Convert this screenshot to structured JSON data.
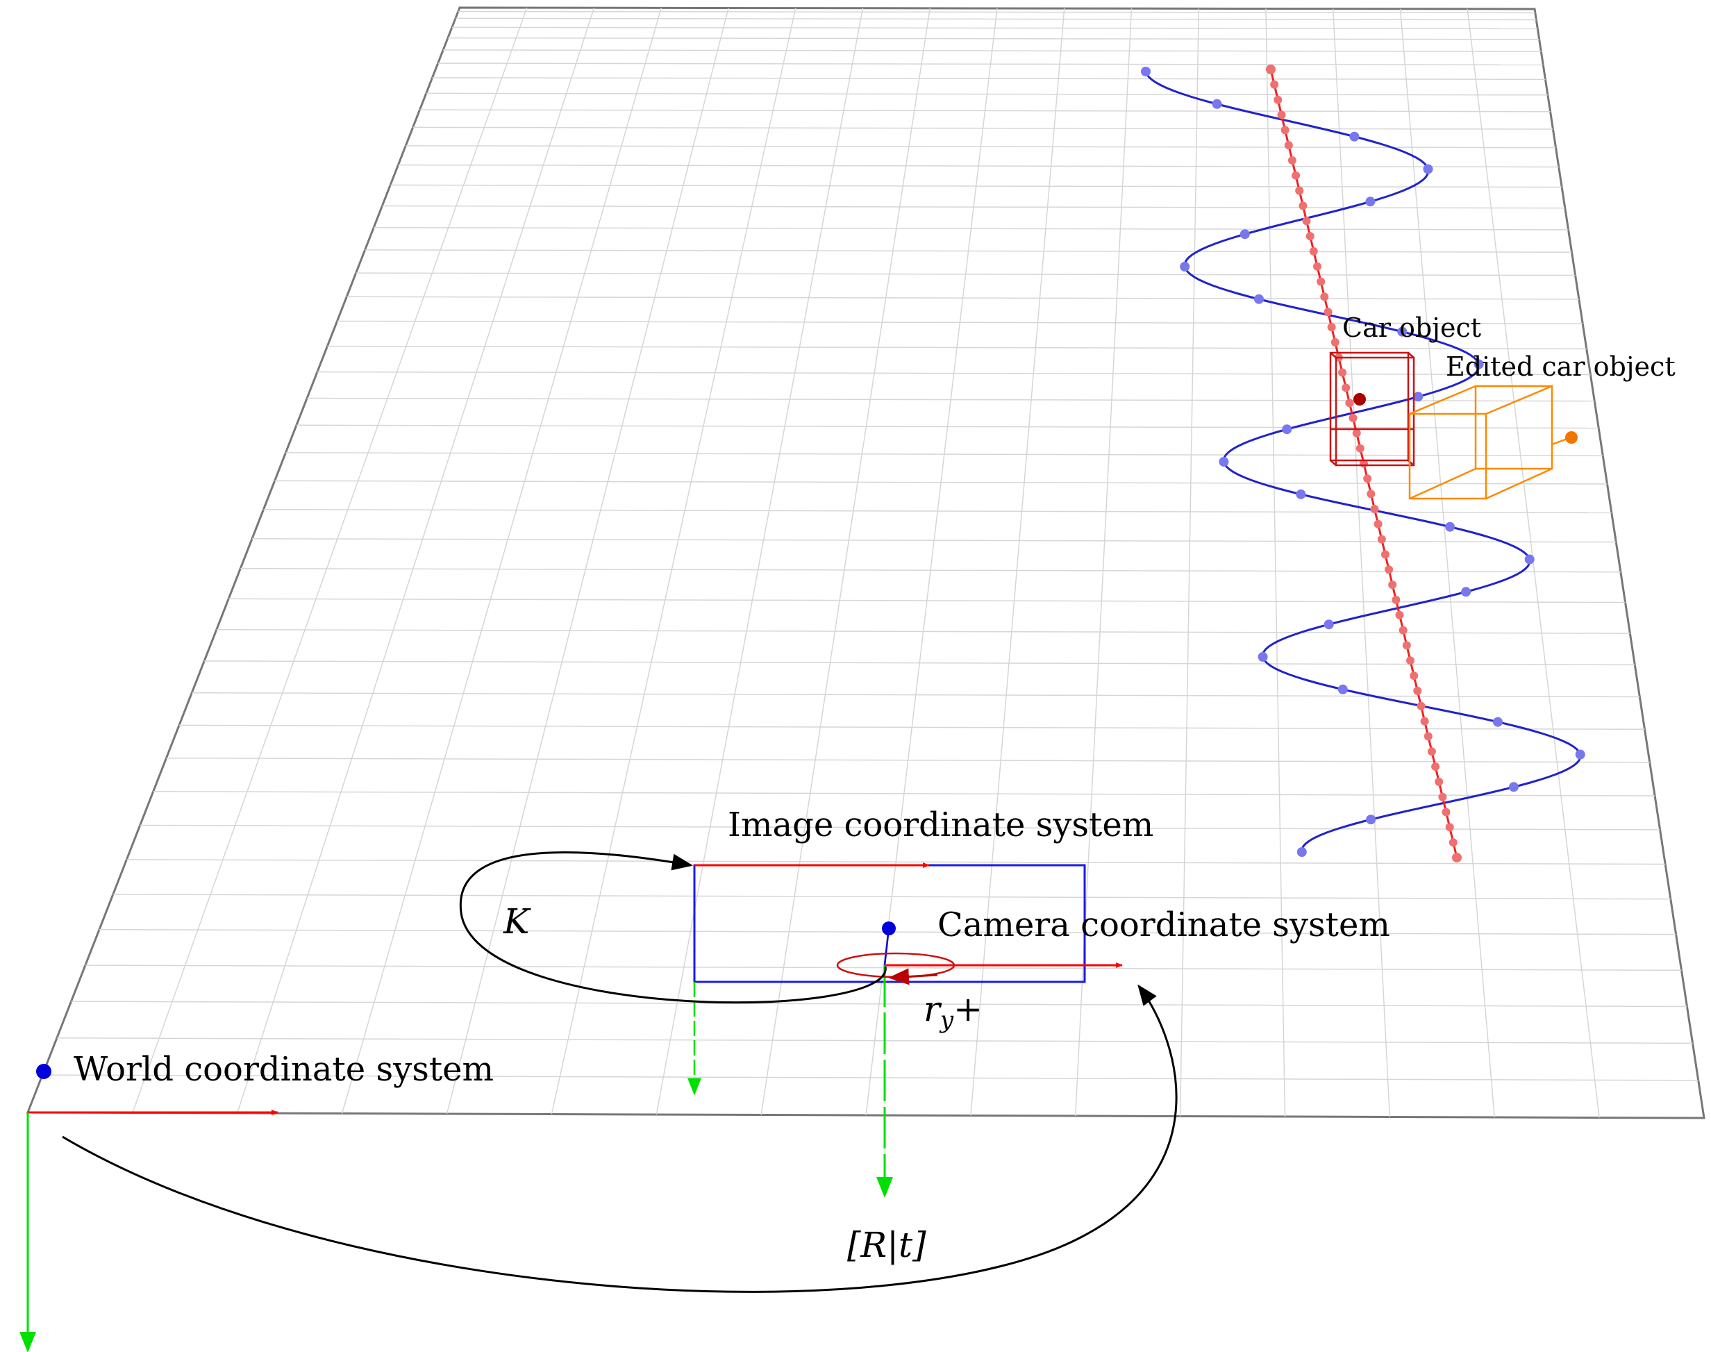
{
  "labels": {
    "image_cs": "Image coordinate system",
    "camera_cs": "Camera coordinate system",
    "world_cs": "World coordinate system",
    "car_object": "Car object",
    "edited_car_object": "Edited car object",
    "K": "K",
    "Rt": "[R|t]",
    "ry_base": "r",
    "ry_sub": "y",
    "ry_sign": "+"
  },
  "colors": {
    "x_axis": "#ff0000",
    "y_axis": "#00e000",
    "origin": "#0000dd",
    "trajectory": "#2222cc",
    "trajectory_points": "#7777ee",
    "path": "#ee2222",
    "path_points": "#f07070",
    "car_box": "#cc1111",
    "edited_box": "#ff8800",
    "grid": "#d6d6d6",
    "plane_border": "#777777"
  }
}
